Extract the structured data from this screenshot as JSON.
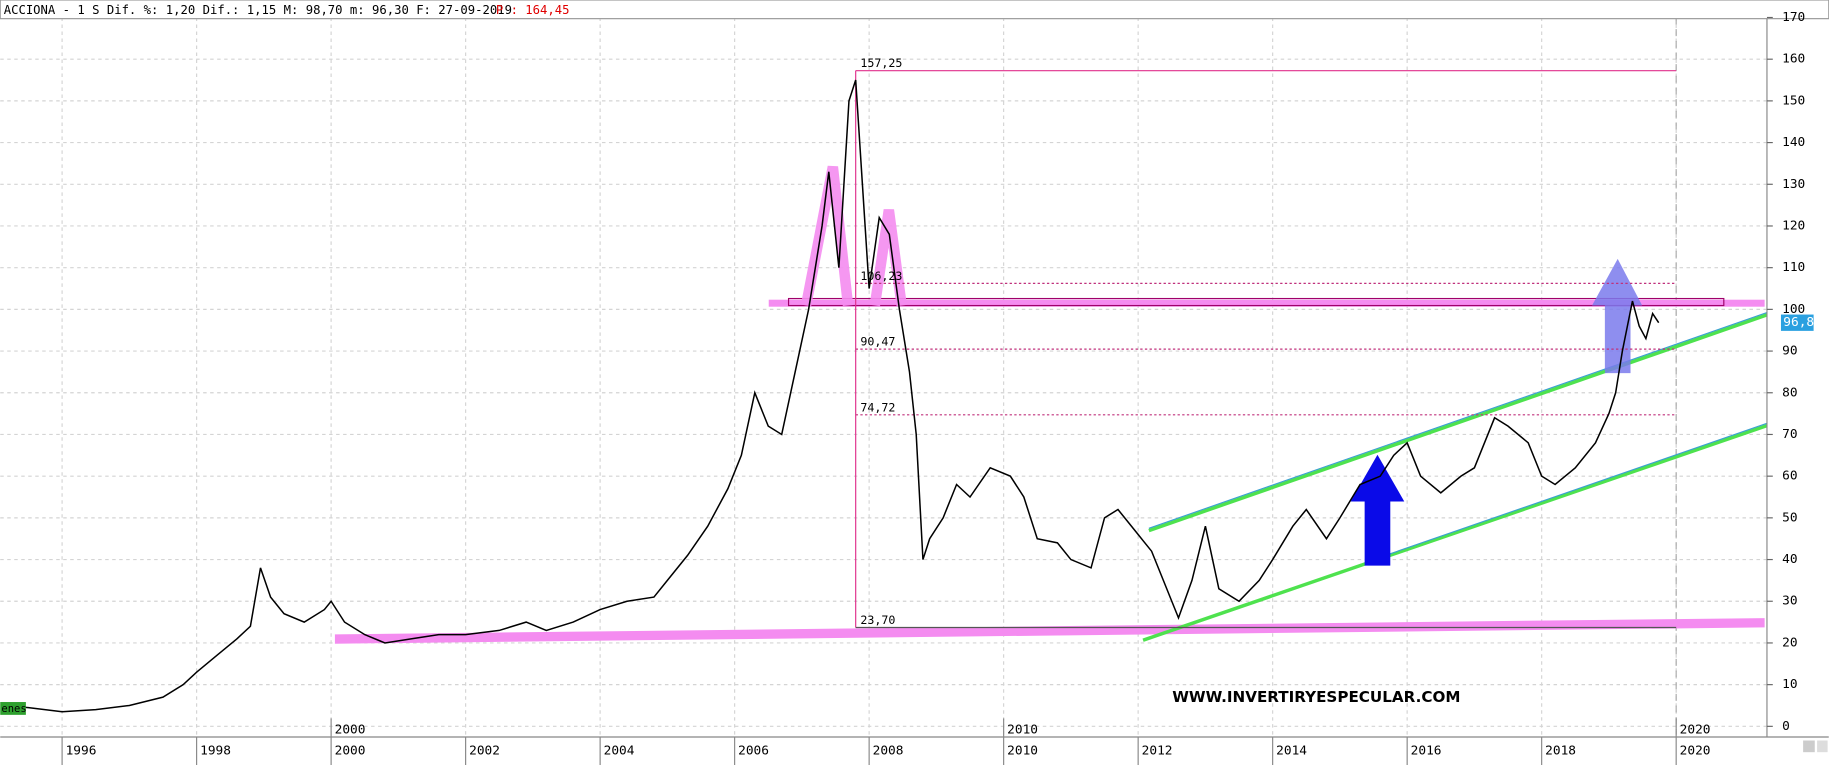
{
  "chart_data": {
    "type": "line",
    "title": "ACCIONA -  1 S Dif. %: 1,20 Dif.: 1,15 M: 98,70 m: 96,30 F: 27-09-2019",
    "header_price": "P : 164,45",
    "watermark": "WWW.INVERTIRYESPECULAR.COM",
    "series_tag": "enes",
    "last_price": {
      "value": 96.8,
      "label": "96,8"
    },
    "x": [
      1995.1,
      1995.5,
      1996.0,
      1996.5,
      1997.0,
      1997.5,
      1997.8,
      1998.0,
      1998.3,
      1998.6,
      1998.8,
      1998.95,
      1999.1,
      1999.3,
      1999.6,
      1999.9,
      2000.0,
      2000.2,
      2000.5,
      2000.8,
      2001.2,
      2001.6,
      2002.0,
      2002.5,
      2002.9,
      2003.2,
      2003.6,
      2004.0,
      2004.4,
      2004.8,
      2005.0,
      2005.3,
      2005.6,
      2005.9,
      2006.1,
      2006.3,
      2006.5,
      2006.7,
      2006.9,
      2007.1,
      2007.3,
      2007.4,
      2007.55,
      2007.7,
      2007.8,
      2007.9,
      2008.0,
      2008.15,
      2008.3,
      2008.45,
      2008.6,
      2008.7,
      2008.8,
      2008.9,
      2009.1,
      2009.3,
      2009.5,
      2009.8,
      2010.1,
      2010.3,
      2010.5,
      2010.8,
      2011.0,
      2011.3,
      2011.5,
      2011.7,
      2012.0,
      2012.2,
      2012.5,
      2012.6,
      2012.8,
      2013.0,
      2013.2,
      2013.5,
      2013.8,
      2014.0,
      2014.3,
      2014.5,
      2014.8,
      2015.0,
      2015.3,
      2015.6,
      2015.8,
      2016.0,
      2016.2,
      2016.5,
      2016.8,
      2017.0,
      2017.3,
      2017.5,
      2017.8,
      2018.0,
      2018.2,
      2018.5,
      2018.8,
      2019.0,
      2019.1,
      2019.2,
      2019.35,
      2019.45,
      2019.55,
      2019.65,
      2019.74
    ],
    "series": [
      {
        "name": "ACCIONA",
        "color": "#000000",
        "values": [
          5,
          4.5,
          3.5,
          4,
          5,
          7,
          10,
          13,
          17,
          21,
          24,
          38,
          31,
          27,
          25,
          28,
          30,
          25,
          22,
          20,
          21,
          22,
          22,
          23,
          25,
          23,
          25,
          28,
          30,
          31,
          35,
          41,
          48,
          57,
          65,
          80,
          72,
          70,
          85,
          100,
          120,
          133,
          110,
          150,
          155,
          130,
          105,
          122,
          118,
          100,
          85,
          70,
          40,
          45,
          50,
          58,
          55,
          62,
          60,
          55,
          45,
          44,
          40,
          38,
          50,
          52,
          46,
          42,
          30,
          26,
          35,
          48,
          33,
          30,
          35,
          40,
          48,
          52,
          45,
          50,
          58,
          60,
          65,
          68,
          60,
          56,
          60,
          62,
          74,
          72,
          68,
          60,
          58,
          62,
          68,
          75,
          80,
          90,
          102,
          96,
          93,
          99,
          96.8
        ]
      }
    ],
    "xlim": [
      1995.08,
      2021.35
    ],
    "ylim": [
      -2,
      170
    ],
    "xticks": [
      {
        "value": 1996,
        "label": "1996"
      },
      {
        "value": 1998,
        "label": "1998"
      },
      {
        "value": 2000,
        "label": "2000"
      },
      {
        "value": 2002,
        "label": "2002"
      },
      {
        "value": 2004,
        "label": "2004"
      },
      {
        "value": 2006,
        "label": "2006"
      },
      {
        "value": 2008,
        "label": "2008"
      },
      {
        "value": 2010,
        "label": "2010"
      },
      {
        "value": 2012,
        "label": "2012"
      },
      {
        "value": 2014,
        "label": "2014"
      },
      {
        "value": 2016,
        "label": "2016"
      },
      {
        "value": 2018,
        "label": "2018"
      },
      {
        "value": 2020,
        "label": "2020"
      }
    ],
    "decade_ticks": [
      {
        "value": 2000,
        "label": "2000"
      },
      {
        "value": 2010,
        "label": "2010"
      },
      {
        "value": 2020,
        "label": "2020"
      }
    ],
    "yticks": [
      0,
      10,
      20,
      30,
      40,
      50,
      60,
      70,
      80,
      90,
      100,
      110,
      120,
      130,
      140,
      150,
      160,
      170
    ],
    "fib_levels": [
      {
        "value": 157.25,
        "label": "157,25"
      },
      {
        "value": 106.23,
        "label": "106,23"
      },
      {
        "value": 90.47,
        "label": "90,47"
      },
      {
        "value": 74.72,
        "label": "74,72"
      },
      {
        "value": 23.7,
        "label": "23,70"
      }
    ],
    "grid": true
  }
}
